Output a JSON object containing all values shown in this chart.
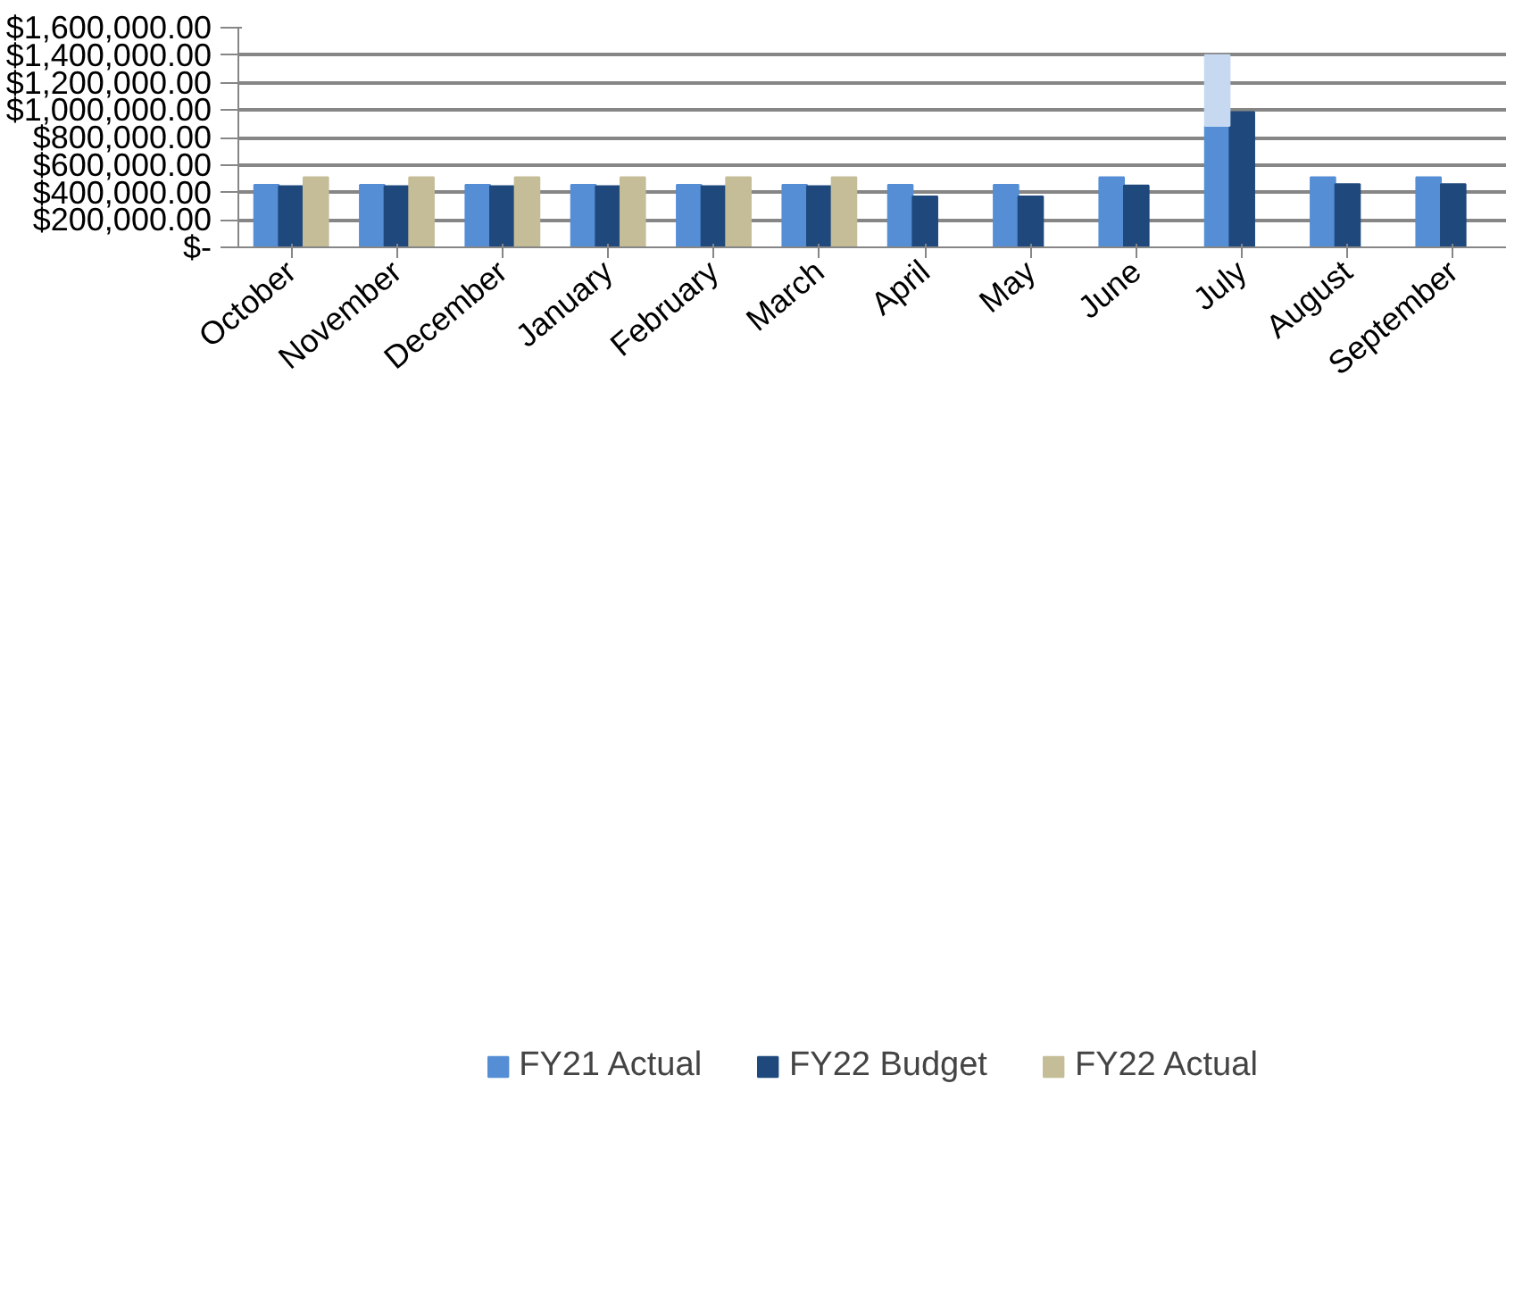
{
  "chart_data": {
    "type": "bar",
    "categories": [
      "October",
      "November",
      "December",
      "January",
      "February",
      "March",
      "April",
      "May",
      "June",
      "July",
      "August",
      "September"
    ],
    "series": [
      {
        "name": "FY21 Actual",
        "color": "#558ed5",
        "values": [
          455000,
          455000,
          455000,
          455000,
          455000,
          455000,
          455000,
          455000,
          510000,
          885000,
          510000,
          510000
        ]
      },
      {
        "name": "FY22 Budget",
        "color": "#1f497d",
        "values": [
          445000,
          445000,
          445000,
          445000,
          445000,
          445000,
          370000,
          370000,
          450000,
          985000,
          460000,
          460000
        ]
      },
      {
        "name": "FY22 Actual",
        "color": "#c4bd97",
        "values": [
          510000,
          510000,
          510000,
          510000,
          510000,
          510000,
          null,
          null,
          null,
          null,
          null,
          null
        ]
      },
      {
        "color": "#c6d9f1",
        "base": [
          null,
          null,
          null,
          null,
          null,
          null,
          null,
          null,
          null,
          885000,
          null,
          null
        ],
        "values": [
          null,
          null,
          null,
          null,
          null,
          null,
          null,
          null,
          null,
          515000,
          null,
          null
        ]
      }
    ],
    "ylim": [
      0,
      1600000
    ],
    "yticks": [
      {
        "value": 0,
        "label": "$-"
      },
      {
        "value": 200000,
        "label": "$200,000.00"
      },
      {
        "value": 400000,
        "label": "$400,000.00"
      },
      {
        "value": 600000,
        "label": "$600,000.00"
      },
      {
        "value": 800000,
        "label": "$800,000.00"
      },
      {
        "value": 1000000,
        "label": "$1,000,000.00"
      },
      {
        "value": 1200000,
        "label": "$1,200,000.00"
      },
      {
        "value": 1400000,
        "label": "$1,400,000.00"
      },
      {
        "value": 1600000,
        "label": "$1,600,000.00"
      }
    ],
    "grid": "y",
    "legend": "bottom"
  }
}
